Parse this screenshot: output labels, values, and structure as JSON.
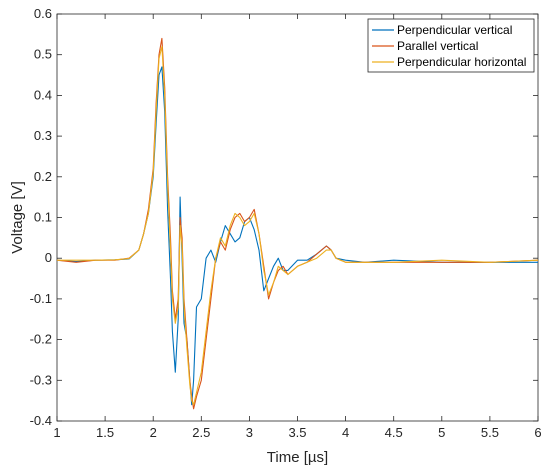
{
  "chart_data": {
    "type": "line",
    "title": "",
    "xlabel": "Time [µs]",
    "ylabel": "Voltage [V]",
    "xlim": [
      1,
      6
    ],
    "ylim": [
      -0.4,
      0.6
    ],
    "xticks": [
      1,
      1.5,
      2,
      2.5,
      3,
      3.5,
      4,
      4.5,
      5,
      5.5,
      6
    ],
    "xtick_labels": [
      "1",
      "1.5",
      "2",
      "2.5",
      "3",
      "3.5",
      "4",
      "4.5",
      "5",
      "5.5",
      "6"
    ],
    "yticks": [
      -0.4,
      -0.3,
      -0.2,
      -0.1,
      0,
      0.1,
      0.2,
      0.3,
      0.4,
      0.5,
      0.6
    ],
    "ytick_labels": [
      "-0.4",
      "-0.3",
      "-0.2",
      "-0.1",
      "0",
      "0.1",
      "0.2",
      "0.3",
      "0.4",
      "0.5",
      "0.6"
    ],
    "grid": false,
    "legend_position": "top-right",
    "series": [
      {
        "name": "Perpendicular vertical",
        "color": "#0072BD",
        "x": [
          1,
          1.2,
          1.4,
          1.6,
          1.75,
          1.85,
          1.9,
          1.95,
          2.0,
          2.03,
          2.06,
          2.09,
          2.12,
          2.15,
          2.18,
          2.2,
          2.23,
          2.26,
          2.28,
          2.3,
          2.32,
          2.35,
          2.38,
          2.4,
          2.42,
          2.45,
          2.5,
          2.55,
          2.6,
          2.65,
          2.7,
          2.75,
          2.8,
          2.85,
          2.9,
          2.95,
          3.0,
          3.05,
          3.1,
          3.15,
          3.2,
          3.25,
          3.3,
          3.35,
          3.4,
          3.5,
          3.6,
          3.7,
          3.8,
          3.85,
          3.9,
          4.0,
          4.2,
          4.5,
          5.0,
          5.5,
          6.0
        ],
        "y": [
          -0.005,
          -0.008,
          -0.005,
          -0.004,
          -0.002,
          0.02,
          0.06,
          0.11,
          0.2,
          0.33,
          0.45,
          0.47,
          0.36,
          0.12,
          -0.05,
          -0.18,
          -0.28,
          -0.15,
          0.15,
          0.0,
          -0.16,
          -0.2,
          -0.3,
          -0.36,
          -0.3,
          -0.12,
          -0.1,
          0.0,
          0.02,
          -0.01,
          0.04,
          0.08,
          0.06,
          0.04,
          0.05,
          0.09,
          0.1,
          0.07,
          0.02,
          -0.08,
          -0.05,
          -0.02,
          0.0,
          -0.03,
          -0.03,
          -0.005,
          -0.005,
          0.01,
          0.03,
          0.02,
          0.0,
          -0.005,
          -0.01,
          -0.005,
          -0.01,
          -0.01,
          -0.01
        ]
      },
      {
        "name": "Parallel vertical",
        "color": "#D95319",
        "x": [
          1,
          1.2,
          1.4,
          1.6,
          1.75,
          1.85,
          1.9,
          1.95,
          2.0,
          2.03,
          2.06,
          2.09,
          2.12,
          2.15,
          2.18,
          2.2,
          2.23,
          2.26,
          2.28,
          2.3,
          2.32,
          2.35,
          2.38,
          2.4,
          2.42,
          2.45,
          2.5,
          2.55,
          2.6,
          2.65,
          2.7,
          2.75,
          2.8,
          2.85,
          2.9,
          2.95,
          3.0,
          3.05,
          3.1,
          3.15,
          3.2,
          3.25,
          3.3,
          3.35,
          3.4,
          3.5,
          3.6,
          3.7,
          3.8,
          3.85,
          3.9,
          4.0,
          4.2,
          4.5,
          5.0,
          5.5,
          6.0
        ],
        "y": [
          -0.005,
          -0.01,
          -0.005,
          -0.005,
          0.0,
          0.02,
          0.06,
          0.12,
          0.22,
          0.38,
          0.5,
          0.54,
          0.42,
          0.2,
          0.05,
          -0.08,
          -0.15,
          -0.1,
          0.1,
          0.05,
          -0.1,
          -0.2,
          -0.3,
          -0.34,
          -0.37,
          -0.34,
          -0.3,
          -0.2,
          -0.1,
          0.0,
          0.04,
          0.02,
          0.07,
          0.1,
          0.11,
          0.09,
          0.1,
          0.12,
          0.06,
          -0.02,
          -0.1,
          -0.06,
          -0.03,
          -0.02,
          -0.04,
          -0.02,
          -0.01,
          0.01,
          0.03,
          0.02,
          0.0,
          -0.01,
          -0.01,
          -0.01,
          -0.01,
          -0.01,
          -0.005
        ]
      },
      {
        "name": "Perpendicular horizontal",
        "color": "#EDB120",
        "x": [
          1,
          1.2,
          1.4,
          1.6,
          1.75,
          1.85,
          1.9,
          1.95,
          2.0,
          2.03,
          2.06,
          2.09,
          2.12,
          2.15,
          2.18,
          2.2,
          2.23,
          2.26,
          2.28,
          2.3,
          2.32,
          2.35,
          2.38,
          2.4,
          2.42,
          2.45,
          2.5,
          2.55,
          2.6,
          2.65,
          2.7,
          2.75,
          2.8,
          2.85,
          2.9,
          2.95,
          3.0,
          3.05,
          3.1,
          3.15,
          3.2,
          3.25,
          3.3,
          3.35,
          3.4,
          3.5,
          3.6,
          3.7,
          3.8,
          3.85,
          3.9,
          4.0,
          4.2,
          4.5,
          5.0,
          5.5,
          6.0
        ],
        "y": [
          -0.005,
          -0.005,
          -0.005,
          -0.004,
          -0.001,
          0.02,
          0.06,
          0.11,
          0.21,
          0.36,
          0.49,
          0.52,
          0.4,
          0.18,
          0.02,
          -0.1,
          -0.16,
          -0.12,
          0.08,
          0.03,
          -0.12,
          -0.22,
          -0.31,
          -0.35,
          -0.36,
          -0.33,
          -0.28,
          -0.18,
          -0.08,
          0.0,
          0.05,
          0.03,
          0.08,
          0.11,
          0.1,
          0.08,
          0.09,
          0.11,
          0.06,
          -0.03,
          -0.09,
          -0.06,
          -0.02,
          -0.03,
          -0.04,
          -0.02,
          -0.01,
          0.0,
          0.02,
          0.02,
          0.0,
          -0.01,
          -0.01,
          -0.01,
          -0.005,
          -0.01,
          -0.005
        ]
      }
    ]
  }
}
